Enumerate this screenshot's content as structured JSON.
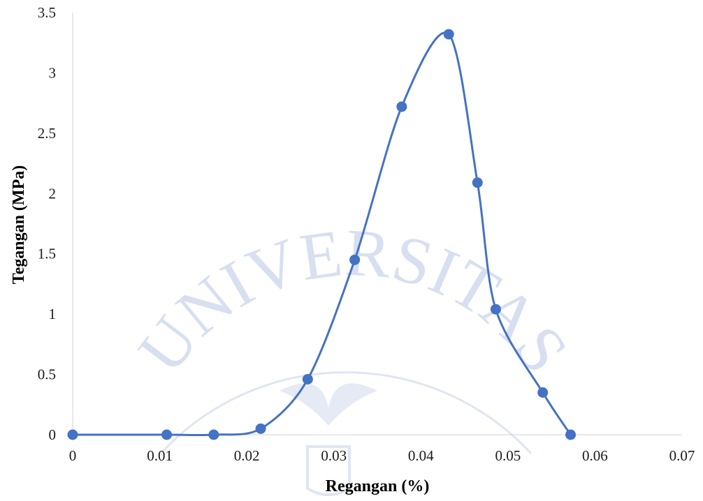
{
  "watermark": {
    "text": "UNIVERSITAS",
    "color": "#d4dcef"
  },
  "chart_data": {
    "type": "scatter",
    "smoothed_line": true,
    "title": "",
    "xlabel": "Regangan (%)",
    "ylabel": "Tegangan (MPa)",
    "xlim": [
      0,
      0.07
    ],
    "ylim": [
      0,
      3.5
    ],
    "x_ticks": [
      "0",
      "0.01",
      "0.02",
      "0.03",
      "0.04",
      "0.05",
      "0.06",
      "0.07"
    ],
    "y_ticks": [
      "0",
      "0.5",
      "1",
      "1.5",
      "2",
      "2.5",
      "3",
      "3.5"
    ],
    "y_gridlines": false,
    "legend": "none",
    "series_color": "#4472c4",
    "series": [
      {
        "x": [
          0,
          0.0108,
          0.0162,
          0.0216,
          0.027,
          0.0324,
          0.0378,
          0.0432,
          0.0465,
          0.0486,
          0.054,
          0.0572
        ],
        "y": [
          0,
          0,
          0,
          0.05,
          0.46,
          1.45,
          2.72,
          3.32,
          2.09,
          1.04,
          0.35,
          0
        ]
      }
    ]
  }
}
